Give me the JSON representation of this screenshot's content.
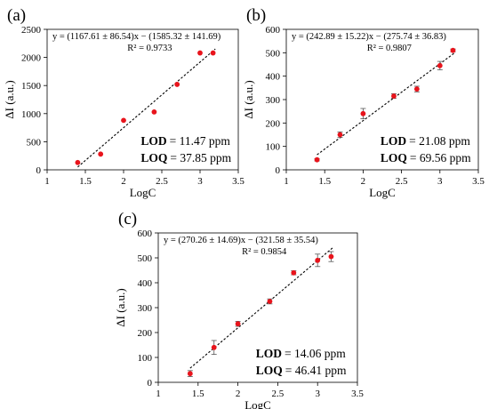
{
  "marker_color": "#e8141c",
  "fit_line_color": "#000000",
  "chart_data": [
    {
      "type": "scatter",
      "panel_label": "(a)",
      "xlabel": "LogC",
      "ylabel": "ΔI (a.u.)",
      "xlim": [
        1,
        3.5
      ],
      "ylim": [
        0,
        2500
      ],
      "xticks": [
        "1",
        "1.5",
        "2",
        "2.5",
        "3",
        "3.5"
      ],
      "yticks": [
        "0",
        "500",
        "1000",
        "1500",
        "2000",
        "2500"
      ],
      "x": [
        1.4,
        1.7,
        2.0,
        2.4,
        2.7,
        3.0,
        3.17
      ],
      "y": [
        130,
        280,
        880,
        1030,
        1520,
        2080,
        2080
      ],
      "error": [
        0,
        0,
        0,
        0,
        0,
        0,
        0
      ],
      "fit": {
        "slope": 1167.61,
        "intercept": -1585.32,
        "x_range": [
          1.4,
          3.2
        ]
      },
      "equation": "y = (1167.61 ± 86.54)x − (1585.32 ± 141.69)",
      "r2": "R² = 0.9733",
      "lod": {
        "label": "LOD",
        "value": "= 11.47 ppm"
      },
      "loq": {
        "label": "LOQ",
        "value": "= 37.85 ppm"
      }
    },
    {
      "type": "scatter",
      "panel_label": "(b)",
      "xlabel": "LogC",
      "ylabel": "ΔI (a.u.)",
      "xlim": [
        1,
        3.5
      ],
      "ylim": [
        0,
        600
      ],
      "xticks": [
        "1",
        "1.5",
        "2",
        "2.5",
        "3",
        "3.5"
      ],
      "yticks": [
        "0",
        "100",
        "200",
        "300",
        "400",
        "500",
        "600"
      ],
      "x": [
        1.4,
        1.7,
        2.0,
        2.4,
        2.7,
        3.0,
        3.17
      ],
      "y": [
        43,
        150,
        240,
        315,
        345,
        445,
        510
      ],
      "error": [
        5,
        12,
        22,
        10,
        12,
        18,
        6
      ],
      "fit": {
        "slope": 242.89,
        "intercept": -275.74,
        "x_range": [
          1.4,
          3.2
        ]
      },
      "equation": "y = (242.89 ± 15.22)x − (275.74 ± 36.83)",
      "r2": "R² = 0.9807",
      "lod": {
        "label": "LOD",
        "value": "= 21.08 ppm"
      },
      "loq": {
        "label": "LOQ",
        "value": "= 69.56 ppm"
      }
    },
    {
      "type": "scatter",
      "panel_label": "(c)",
      "xlabel": "LogC",
      "ylabel": "ΔI (a.u.)",
      "xlim": [
        1,
        3.5
      ],
      "ylim": [
        0,
        600
      ],
      "xticks": [
        "1",
        "1.5",
        "2",
        "2.5",
        "3",
        "3.5"
      ],
      "yticks": [
        "0",
        "100",
        "200",
        "300",
        "400",
        "500",
        "600"
      ],
      "x": [
        1.4,
        1.7,
        2.0,
        2.4,
        2.7,
        3.0,
        3.17
      ],
      "y": [
        35,
        140,
        235,
        325,
        440,
        490,
        505
      ],
      "error": [
        12,
        28,
        10,
        10,
        8,
        25,
        20
      ],
      "fit": {
        "slope": 270.26,
        "intercept": -321.58,
        "x_range": [
          1.4,
          3.2
        ]
      },
      "equation": "y = (270.26 ± 14.69)x − (321.58 ± 35.54)",
      "r2": "R² = 0.9854",
      "lod": {
        "label": "LOD",
        "value": "= 14.06 ppm"
      },
      "loq": {
        "label": "LOQ",
        "value": "= 46.41 ppm"
      }
    }
  ]
}
